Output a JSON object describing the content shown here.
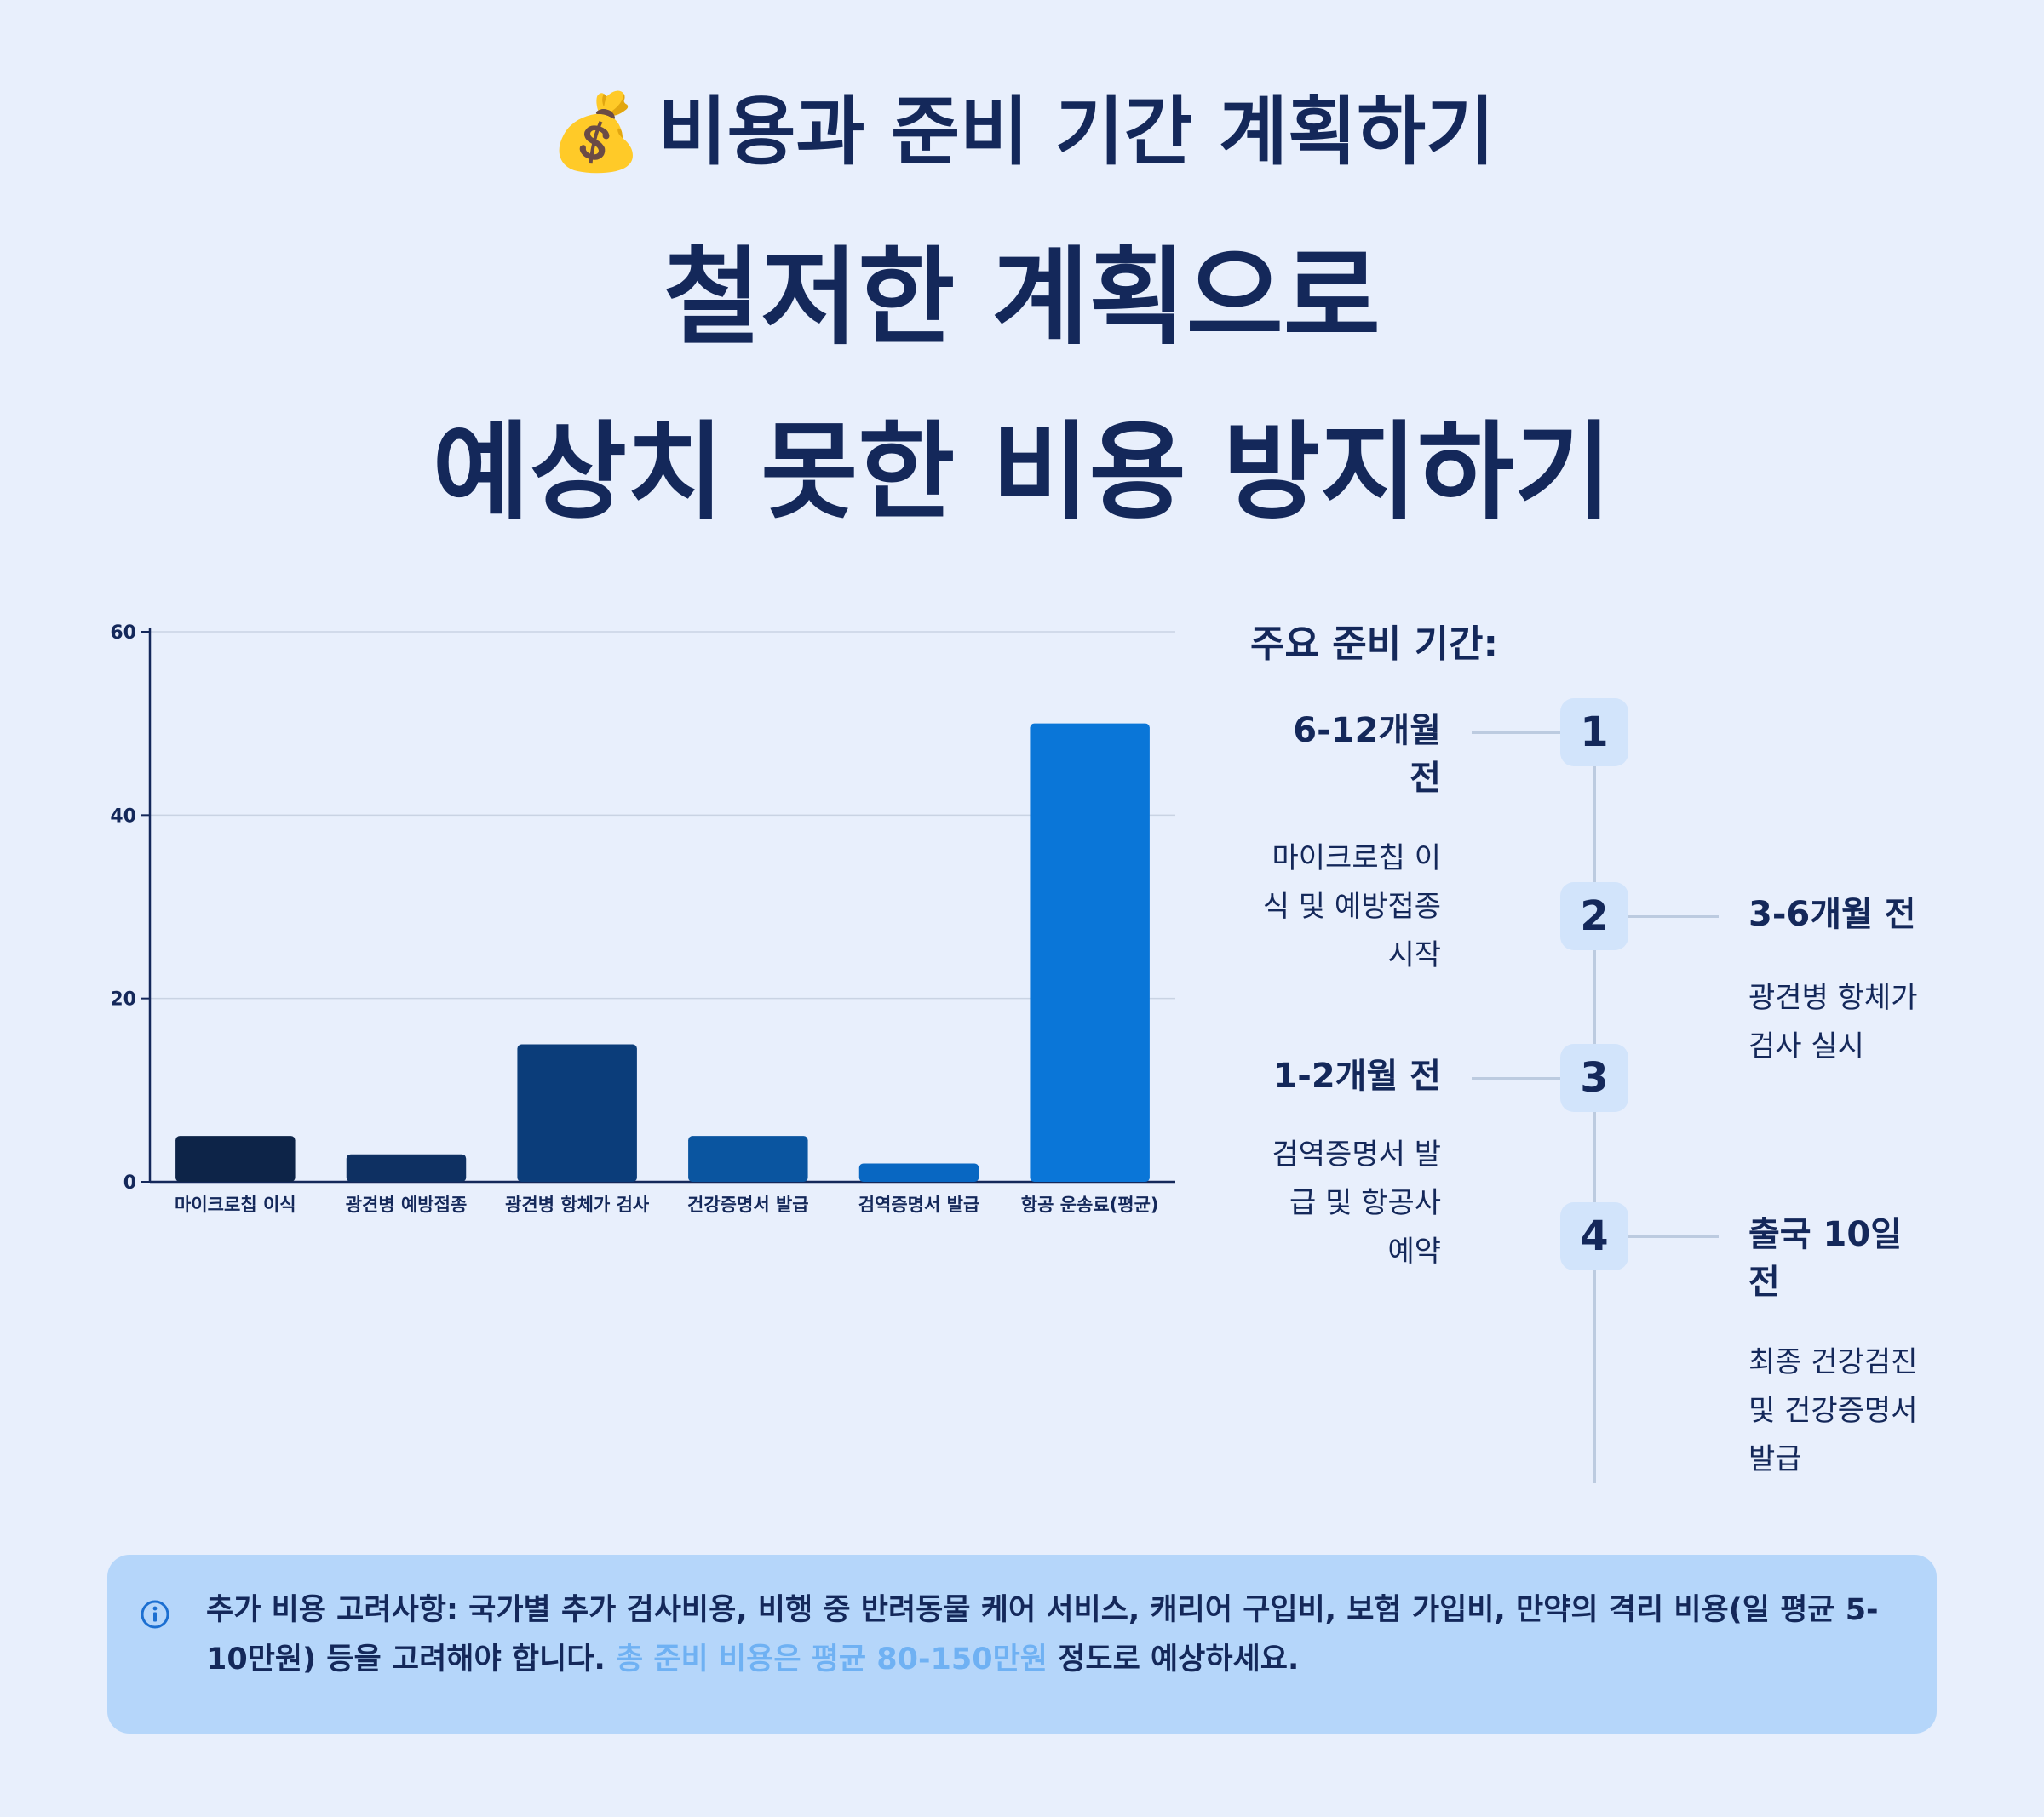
{
  "header": {
    "emoji": "💰",
    "subtitle": "비용과 준비 기간 계획하기",
    "title_line_1": "철저한 계획으로",
    "title_line_2": "예상치 못한 비용 방지하기"
  },
  "chart_data": {
    "type": "bar",
    "categories": [
      "마이크로칩 이식",
      "광견병 예방접종",
      "광견병 항체가 검사",
      "건강증명서 발급",
      "검역증명서 발급",
      "항공 운송료(평균)"
    ],
    "values": [
      5,
      3,
      15,
      5,
      2,
      50
    ],
    "ylim": [
      0,
      60
    ],
    "yticks": [
      0,
      20,
      40,
      60
    ],
    "bar_colors": [
      "#0d2448",
      "#0e3062",
      "#0b3d7a",
      "#0a55a0",
      "#0867c2",
      "#0a76d8"
    ],
    "grid": true
  },
  "timeline": {
    "heading": "주요 준비 기간:",
    "steps": [
      {
        "number": "1",
        "title_lines": [
          "6-12개월",
          "전"
        ],
        "desc_lines": [
          "마이크로칩 이",
          "식 및 예방접종",
          "시작"
        ]
      },
      {
        "number": "2",
        "title_lines": [
          "3-6개월 전"
        ],
        "desc_lines": [
          "광견병 항체가",
          "검사 실시"
        ]
      },
      {
        "number": "3",
        "title_lines": [
          "1-2개월 전"
        ],
        "desc_lines": [
          "검역증명서 발",
          "급 및 항공사",
          "예약"
        ]
      },
      {
        "number": "4",
        "title_lines": [
          "출국 10일",
          "전"
        ],
        "desc_lines": [
          "최종 건강검진",
          "및 건강증명서",
          "발급"
        ]
      }
    ]
  },
  "info": {
    "icon": "info-circle-icon",
    "text": "추가 비용 고려사항: 국가별 추가 검사비용, 비행 중 반려동물 케어 서비스, 캐리어 구입비, 보험 가입비, 만약의 격리 비용(일 평균 5-10만원) 등을 고려해야 합니다. ",
    "highlight": "총 준비 비용은 평균 80-150만원",
    "tail": " 정도로 예상하세요."
  }
}
